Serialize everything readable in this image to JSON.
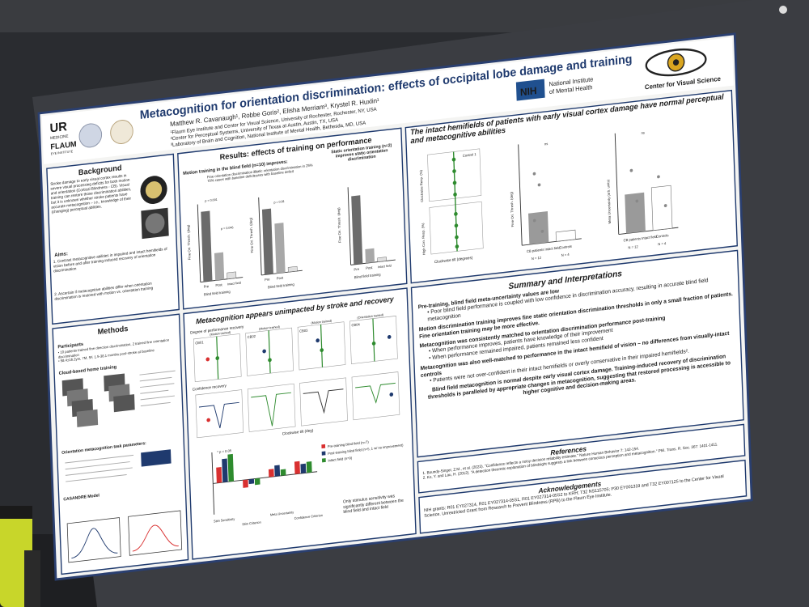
{
  "poster": {
    "title_line1": "Metacognition for orientation discrimination: effects of occipital lobe damage and training",
    "authors": "Matthew R. Cavanaugh¹, Robbe Goris², Elisha Merriam³, Krystel R. Huxlin¹",
    "affil1": "¹Flaum Eye Institute and Center for Visual Science, University of Rochester, Rochester, NY, USA",
    "affil2": "²Center for Perceptual Systems, University of Texas at Austin, Austin, TX, USA",
    "affil3": "³Laboratory of Brain and Cognition, National Institute of Mental Health, Bethesda, MD, USA",
    "logo_ur": "UR",
    "logo_ur_sub": "MEDICINE",
    "logo_flaum": "FLAUM",
    "logo_flaum_sub": "EYE INSTITUTE",
    "nih": "NIH",
    "nih_name_1": "National Institute",
    "nih_name_2": "of Mental Health",
    "cvs": "Center for Visual Science"
  },
  "background": {
    "heading": "Background",
    "body": "Stroke damage to early visual cortex results in severe visual processing deficits for both motion and orientation (Cortical Blindness - CB). Visual training can restore those discrimination abilities, but it is unknown whether stroke patients have accurate metacognition – i.e., knowledge of their (changing) perceptual abilities.",
    "aims_label": "Aims:",
    "aim1": "1. Contrast metacognitive abilities in impaired and intact hemifields of vision before and after training-induced recovery of orientation discrimination",
    "aim2": "2. Ascertain if metacognitive abilities differ when orientation discrimination is restored with motion vs. orientation training"
  },
  "results_training": {
    "heading": "Results: effects of training on performance",
    "motion_title": "Motion training in the blind field (n=10) improves:",
    "motion_sub1": "Fine orientation discrimination in 70% cases with baseline deficit",
    "motion_sub2": "Static orientation discrimination in 25% cases with baseline deficit",
    "static_title": "Static orientation training (n=2) improves static orientation discrimination",
    "ylab1": "Fine Ori. Thresh. (deg)",
    "ylab2": "Fine Ori. Thresh. (deg)",
    "ylab3": "Fine Ori. Thresh. (deg)",
    "p1": "p < 0.001",
    "p2": "p = 0.046",
    "p3": "p = 0.81",
    "ns": "ns",
    "pre": "Pre",
    "post": "Post",
    "intact": "Intact field",
    "blind_training": "Blind field training"
  },
  "intact": {
    "heading": "The intact hemifields of patients with early visual cortex damage have normal perceptual and metacognitive abilities",
    "ctrl": "Control 1",
    "ylab_a": "Clockwise Resp. (%)",
    "ylab_b": "High Con. Resp. (%)",
    "xlab": "Clockwise tilt (degrees)",
    "ylab_c": "Fine Ori. Thresh. (deg)",
    "ylab_d": "Meta Uncertainty (arb. units)",
    "cb": "CB patients Intact field",
    "controls": "Controls",
    "n12": "N = 12",
    "n4": "N = 4",
    "ns": "ns"
  },
  "methods": {
    "heading": "Methods",
    "participants": "Participants",
    "p1": "10 patients trained fine direction discrimination, 2 trained fine orientation discrimination",
    "p2": "58.4±16.2yrs, 7M, 5F, 1.5-38.1 months post-stroke at baseline",
    "cloud": "Cloud-based home training",
    "ori_task": "Orientation metacognition task parameters:",
    "casandre": "CASANDRE Model"
  },
  "metacog": {
    "heading": "Metacognition appears unimpacted by stroke and recovery",
    "deg_label": "Degree of performance recovery",
    "conf_label": "Confidence recovery",
    "cb_labels": [
      "CB01",
      "CB02",
      "CB03",
      "CB04"
    ],
    "motion_trained": "(Motion trained)",
    "orient_trained": "(Orientation trained)",
    "xlab": "Clockwise tilt (deg)",
    "legend1": "Pre-training blind field (n=7)",
    "legend2": "Post-training blind field (n=5, 1 w/ no improvement)",
    "legend3": "Intact field (n=9)",
    "p05": "* p < 0.05",
    "bar_labels": [
      "Stim Sensitivity",
      "Stim Criterion",
      "Meta Uncertainty",
      "Confidence Criterion"
    ],
    "note": "Only stimulus sensitivity was significantly different between the blind field and intact field"
  },
  "summary": {
    "heading": "Summary and Interpretations",
    "h1": "Pre-training, blind field meta-uncertainty values are low",
    "b1": "Poor blind field performance is coupled with low confidence in discrimination accuracy, resulting in accurate blind field metacognition",
    "h2": "Motion discrimination training improves fine static orientation discrimination thresholds in only a small fraction of patients. Fine orientation training may be more effective.",
    "h3": "Metacognition was consistently matched to orientation discrimination performance post-training",
    "b3a": "When performance improves, patients have knowledge of their improvement",
    "b3b": "When performance remained impaired, patients remained less confident",
    "h4": "Metacognition was also well-matched to performance in the intact hemifield of vision – no differences from visually-intact controls",
    "b4": "Patients were not over-confident in their intact hemifields or overly conservative in their impaired hemifields².",
    "h5": "Blind field metacognition is normal despite early visual cortex damage. Training-induced recovery of discrimination thresholds is paralleled by appropriate changes in metacognition, suggesting that restored processing is accessible to higher cognitive and decision-making areas."
  },
  "references": {
    "heading": "References",
    "r1": "1. Boundy-Singer, Z.M., et al. (2023). \"Confidence reflects a noisy decision reliability estimate.\" Nature Human Behavior 7: 142-154.",
    "r2": "2. Ko, Y. and Lau, H. (2012). \"A detection theoretic explanation of blindsight suggests a link between conscious perception and metacognition.\" Phil. Trans. R. Soc. 367: 1401-1411."
  },
  "ack": {
    "heading": "Acknowledgements",
    "body": "NIH grants: R01 EY027314, R01 EY027314-05S1, R01 EY027314-05S2 to KRH; T32 NS115705; P30 EY001319 and T32 EY007125 to the Center for Visual Science. Unrestricted Grant from Research to Prevent Blindness (RPB) to the Flaum Eye Institute."
  },
  "colors": {
    "wall": "#2b2d31",
    "poster": "#f4f4f2",
    "navy": "#1f3a6e",
    "gold": "#c9a227",
    "green": "#2e8b2e",
    "red": "#d93030"
  }
}
